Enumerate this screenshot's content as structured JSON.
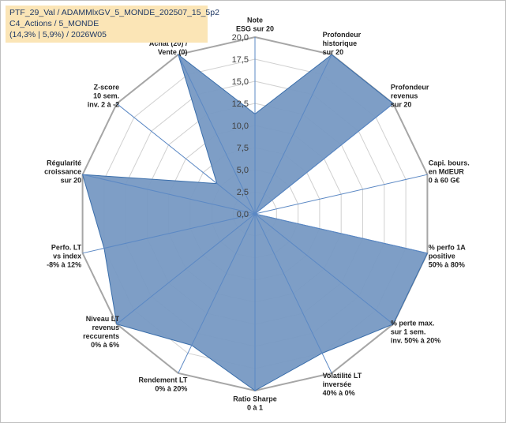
{
  "header": {
    "line1": "PTF_29_Val / ADAMMlxGV_5_MONDE_202507_15_5p2",
    "line2": "C4_Actions / 5_MONDE",
    "line3": "(14,3% | 5,9%) / 2026W05"
  },
  "chart_data": {
    "type": "radar",
    "rmin": 0,
    "rmax": 20,
    "tick_step": 2.5,
    "tick_labels": [
      "0,0",
      "2,5",
      "5,0",
      "7,5",
      "10,0",
      "12,5",
      "15,0",
      "17,5",
      "20,0"
    ],
    "axes": [
      {
        "lines": [
          "Note",
          "ESG sur 20"
        ]
      },
      {
        "lines": [
          "Profondeur",
          "historique",
          "sur 20"
        ]
      },
      {
        "lines": [
          "Profondeur",
          "revenus",
          "sur 20"
        ]
      },
      {
        "lines": [
          "Capi. bours.",
          "en MdEUR",
          "0 à 60 G€"
        ]
      },
      {
        "lines": [
          "% perfo 1A",
          "positive",
          "50% à 80%"
        ]
      },
      {
        "lines": [
          "% perte max.",
          "sur 1 sem.",
          "inv. 50% à 20%"
        ]
      },
      {
        "lines": [
          "Volatilité LT",
          "inversée",
          "40% à 0%"
        ]
      },
      {
        "lines": [
          "Ratio Sharpe",
          "0 à 1"
        ]
      },
      {
        "lines": [
          "Rendement LT",
          "0% à 20%"
        ]
      },
      {
        "lines": [
          "Niveau LT",
          "revenus",
          "reccurents",
          "0% à 6%"
        ]
      },
      {
        "lines": [
          "Perfo. LT",
          "vs index",
          "-8% à 12%"
        ]
      },
      {
        "lines": [
          "Régularité",
          "croissance",
          "sur 20"
        ]
      },
      {
        "lines": [
          "Z-score",
          "10 sem.",
          "inv. 2 à -2"
        ]
      },
      {
        "lines": [
          "Momentum",
          "Achat (20) /",
          "Vente (0)"
        ],
        "muted_first": true
      }
    ],
    "series": [
      {
        "values": [
          11.3,
          20,
          20,
          0,
          20,
          20,
          17.5,
          20,
          16.5,
          20,
          17.5,
          20,
          5.5,
          20
        ]
      }
    ],
    "colors": {
      "fill": "#7799c3",
      "stroke": "#3a6eab",
      "grid": "#d0d0d0",
      "spoke": "#5b88c4"
    }
  }
}
